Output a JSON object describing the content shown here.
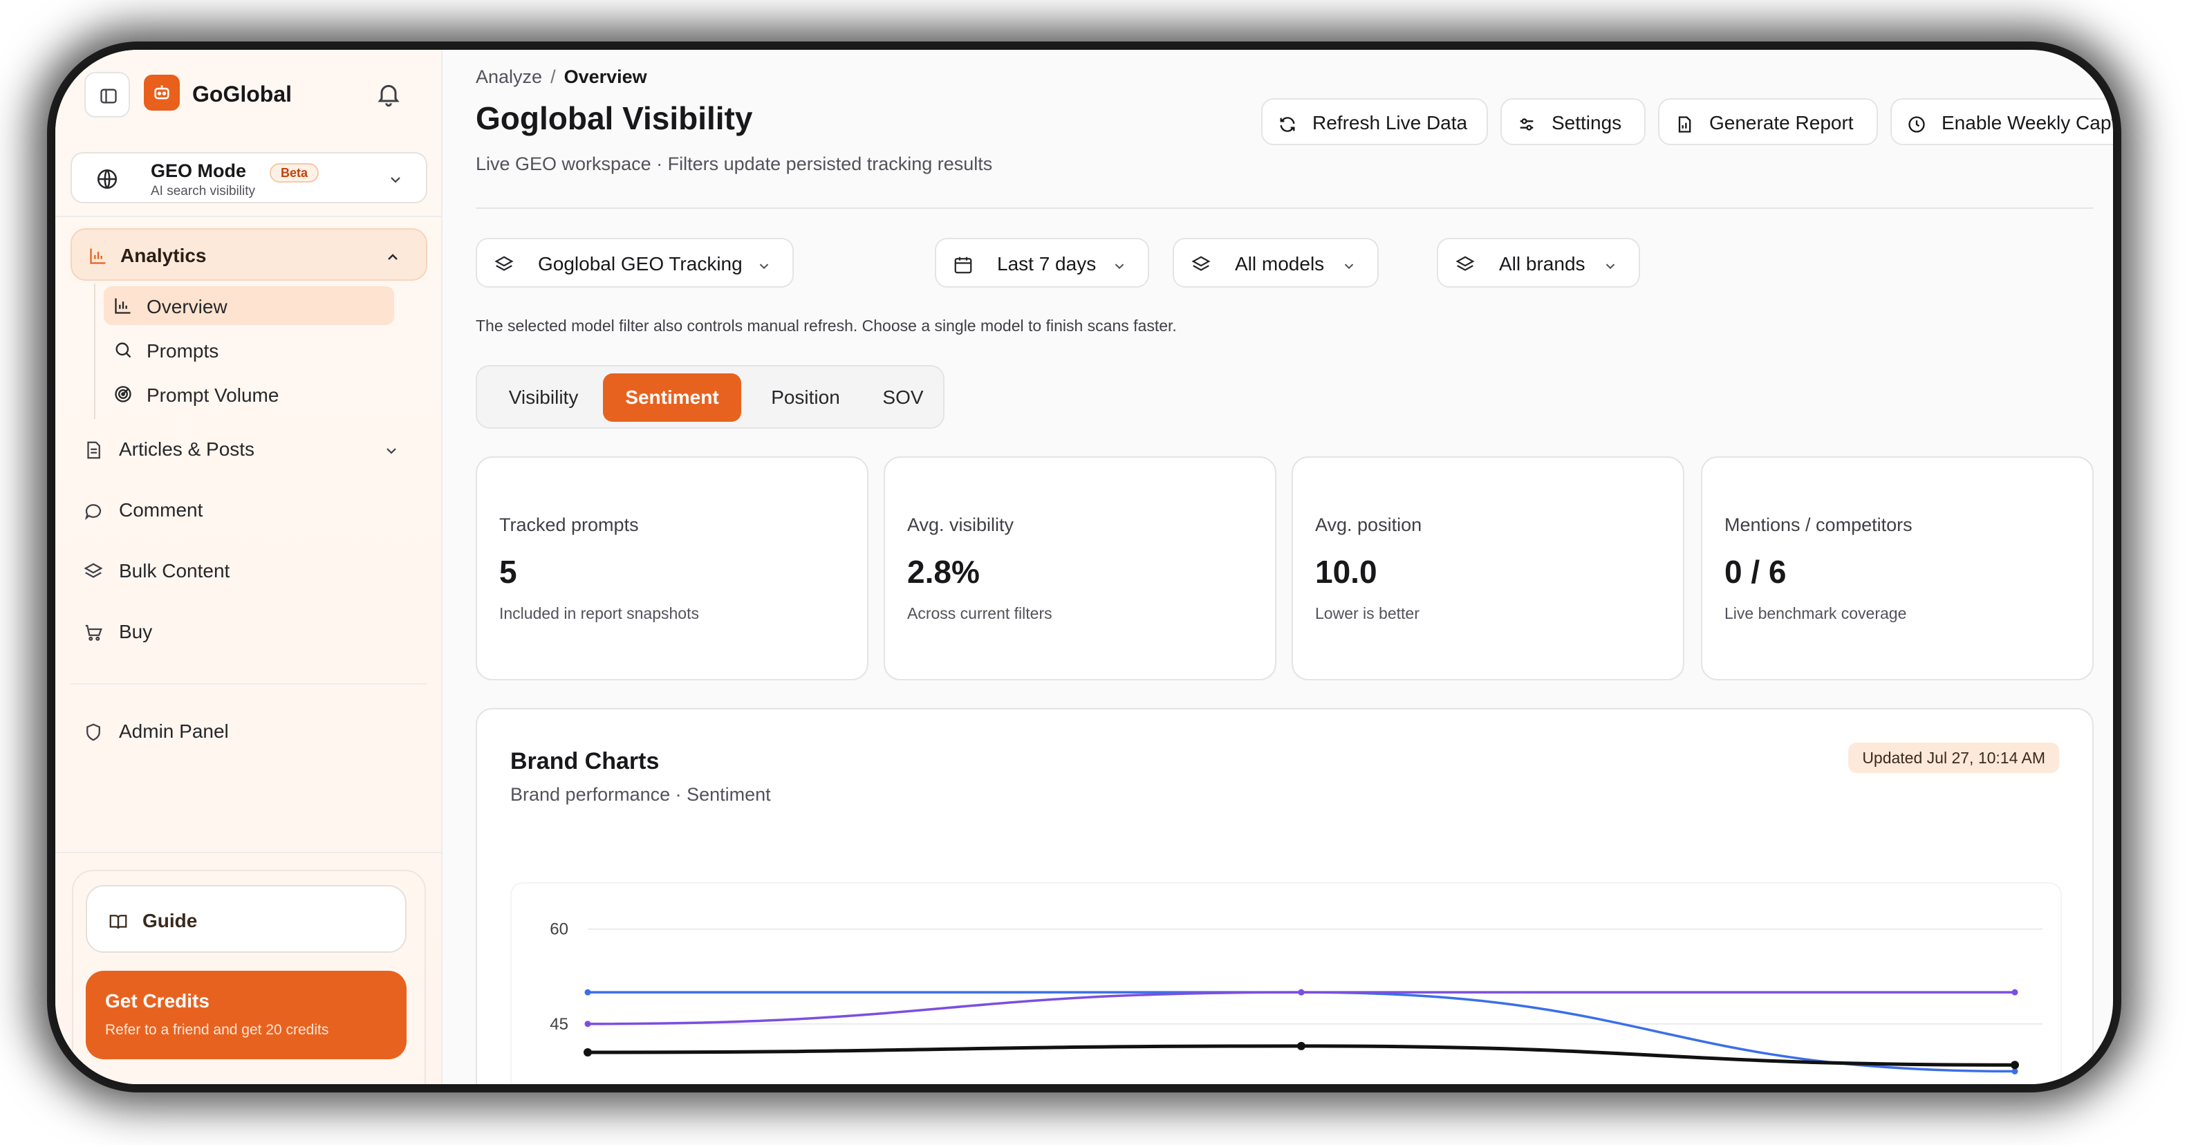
{
  "sidebar": {
    "brand": "GoGlobal",
    "geo_mode": {
      "title": "GEO Mode",
      "badge": "Beta",
      "subtitle": "AI search visibility"
    },
    "analytics": {
      "label": "Analytics",
      "items": [
        {
          "label": "Overview",
          "icon": "bar-chart-icon",
          "active": true
        },
        {
          "label": "Prompts",
          "icon": "search-icon",
          "active": false
        },
        {
          "label": "Prompt Volume",
          "icon": "radar-icon",
          "active": false
        }
      ]
    },
    "nav": [
      {
        "label": "Articles & Posts",
        "icon": "document-icon",
        "has_chevron": true
      },
      {
        "label": "Comment",
        "icon": "chat-bubble-icon",
        "has_chevron": false
      },
      {
        "label": "Bulk Content",
        "icon": "layers-icon",
        "has_chevron": false
      },
      {
        "label": "Buy",
        "icon": "cart-icon",
        "has_chevron": false
      }
    ],
    "admin": {
      "label": "Admin Panel",
      "icon": "shield-icon"
    },
    "guide": {
      "label": "Guide",
      "icon": "book-icon"
    },
    "credits": {
      "title": "Get Credits",
      "subtitle": "Refer to a friend and get 20 credits"
    }
  },
  "header": {
    "breadcrumb": {
      "parent": "Analyze",
      "separator": "/",
      "current": "Overview"
    },
    "title": "Goglobal Visibility",
    "subtitle": "Live GEO workspace · Filters update persisted tracking results",
    "buttons": {
      "refresh": "Refresh Live Data",
      "settings": "Settings",
      "report": "Generate Report",
      "weekly": "Enable Weekly Capture"
    }
  },
  "filters": {
    "project": "Goglobal GEO Tracking",
    "range": "Last 7 days",
    "models": "All models",
    "brands": "All brands",
    "note": "The selected model filter also controls manual refresh. Choose a single model to finish scans faster."
  },
  "tabs": [
    {
      "label": "Visibility",
      "active": false
    },
    {
      "label": "Sentiment",
      "active": true
    },
    {
      "label": "Position",
      "active": false
    },
    {
      "label": "SOV",
      "active": false
    }
  ],
  "stats": [
    {
      "label": "Tracked prompts",
      "value": "5",
      "sub": "Included in report snapshots"
    },
    {
      "label": "Avg. visibility",
      "value": "2.8%",
      "sub": "Across current filters"
    },
    {
      "label": "Avg. position",
      "value": "10.0",
      "sub": "Lower is better"
    },
    {
      "label": "Mentions / competitors",
      "value": "0 / 6",
      "sub": "Live benchmark coverage"
    }
  ],
  "brand_charts": {
    "title": "Brand Charts",
    "subtitle": "Brand performance · Sentiment",
    "updated": "Updated Jul 27, 10:14 AM"
  },
  "colors": {
    "accent": "#e8621f",
    "series_blue": "#3b6fe8",
    "series_purple": "#7b4fe0",
    "series_black": "#111111"
  },
  "chart_data": {
    "type": "line",
    "x": [
      0,
      1,
      2
    ],
    "y_ticks": [
      45,
      60
    ],
    "ylim": [
      30,
      65
    ],
    "series": [
      {
        "color": "#3b6fe8",
        "values": [
          50,
          50,
          37.5
        ]
      },
      {
        "color": "#7b4fe0",
        "values": [
          45,
          50,
          50
        ]
      },
      {
        "color": "#111111",
        "values": [
          40.5,
          41.5,
          38.5
        ]
      }
    ]
  }
}
